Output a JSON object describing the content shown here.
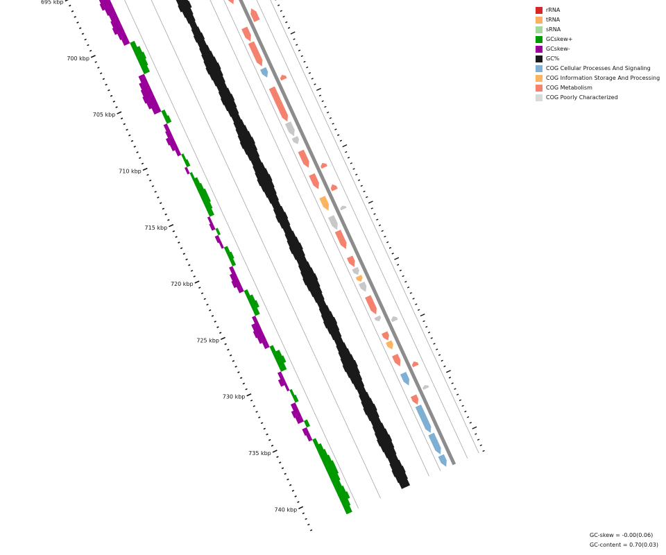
{
  "legend": [
    {
      "label": "rRNA",
      "color": "#d62728"
    },
    {
      "label": "tRNA",
      "color": "#fdae61"
    },
    {
      "label": "sRNA",
      "color": "#a1d99b"
    },
    {
      "label": "GCskew+",
      "color": "#009900"
    },
    {
      "label": "GCskew-",
      "color": "#990099"
    },
    {
      "label": "GC%",
      "color": "#1a1a1a"
    },
    {
      "label": "COG Cellular Processes And Signaling",
      "color": "#7fb0d4"
    },
    {
      "label": "COG Information Storage And Processing",
      "color": "#fdb462"
    },
    {
      "label": "COG Metabolism",
      "color": "#f4826f"
    },
    {
      "label": "COG Poorly Characterized",
      "color": "#d9d9d9"
    }
  ],
  "stats": {
    "gc_skew": "GC-skew = -0.00(0.06)",
    "gc_content": "GC-content = 0.70(0.03)"
  },
  "chart_data": {
    "type": "circular-genome-map-segment",
    "unit": "kbp",
    "range_kbp": [
      692,
      742
    ],
    "tick_labels": [
      {
        "kbp": 695,
        "label": "695 kbp"
      },
      {
        "kbp": 700,
        "label": "700 kbp"
      },
      {
        "kbp": 705,
        "label": "705 kbp"
      },
      {
        "kbp": 710,
        "label": "710 kbp"
      },
      {
        "kbp": 715,
        "label": "715 kbp"
      },
      {
        "kbp": 720,
        "label": "720 kbp"
      },
      {
        "kbp": 725,
        "label": "725 kbp"
      },
      {
        "kbp": 730,
        "label": "730 kbp"
      },
      {
        "kbp": 735,
        "label": "735 kbp"
      },
      {
        "kbp": 740,
        "label": "740 kbp"
      }
    ],
    "gc_skew": [
      0.7,
      0.6,
      0.55,
      0.5,
      0.4,
      -0.3,
      -0.6,
      -0.8,
      -0.9,
      -0.7,
      -0.6,
      -0.7,
      -0.8,
      -0.6,
      -0.5,
      0.4,
      0.6,
      0.7,
      0.6,
      0.5,
      -0.5,
      -0.7,
      -0.8,
      -0.9,
      -0.8,
      -0.6,
      0.3,
      0.4,
      -0.3,
      -0.4,
      -0.6,
      -0.5,
      -0.3,
      0.2,
      0.3,
      -0.2,
      0.2,
      0.4,
      0.5,
      0.6,
      0.6,
      0.5,
      0.4,
      -0.2,
      -0.3,
      0.2,
      -0.3,
      -0.2,
      0.3,
      0.4,
      0.3,
      -0.3,
      -0.5,
      -0.6,
      -0.4,
      0.3,
      0.5,
      0.6,
      0.4,
      -0.3,
      -0.6,
      -0.7,
      -0.6,
      -0.4,
      0.3,
      0.6,
      0.7,
      0.5,
      -0.3,
      -0.5,
      -0.2,
      0.2,
      0.3,
      -0.4,
      -0.6,
      -0.5,
      0.3,
      -0.4,
      -0.3,
      0.3,
      0.5,
      0.6,
      0.7,
      0.8,
      0.8,
      0.7,
      0.6,
      0.7,
      0.8,
      0.6,
      0.5
    ],
    "gc_percent": [
      0.2,
      0.3,
      0.5,
      0.6,
      0.5,
      0.4,
      0.5,
      0.6,
      0.7,
      0.6,
      0.5,
      0.6,
      0.7,
      0.8,
      0.6,
      0.5,
      0.4,
      0.5,
      0.6,
      0.5,
      0.6,
      0.7,
      0.8,
      0.9,
      0.8,
      0.7,
      0.6,
      0.7,
      0.8,
      0.7,
      0.6,
      0.5,
      0.6,
      0.7,
      0.8,
      0.9,
      0.8,
      0.7,
      0.6,
      0.7,
      0.8,
      0.9,
      0.8,
      0.7,
      0.6,
      0.5,
      0.6,
      0.7,
      0.6,
      0.5,
      0.6,
      0.7,
      0.8,
      0.7,
      0.6,
      0.7,
      0.8,
      0.9,
      0.8,
      0.7,
      0.6,
      0.5,
      0.6,
      0.7,
      0.8,
      0.7,
      0.6,
      0.5,
      0.6,
      0.7,
      0.8,
      0.9,
      0.8,
      0.7,
      0.6,
      0.5,
      0.6,
      0.7,
      0.8,
      0.7,
      0.6,
      0.7,
      0.8,
      0.9,
      0.8,
      0.7,
      0.6,
      0.7,
      0.8,
      0.7,
      0.6
    ],
    "features": [
      {
        "start": 692.2,
        "end": 693.5,
        "strand": "+",
        "category": "COG Metabolism"
      },
      {
        "start": 694.3,
        "end": 694.8,
        "strand": "-",
        "category": "COG Cellular Processes And Signaling"
      },
      {
        "start": 695.0,
        "end": 697.2,
        "strand": "+",
        "category": "COG Metabolism"
      },
      {
        "start": 697.8,
        "end": 699.6,
        "strand": "+",
        "category": "COG Metabolism"
      },
      {
        "start": 699.7,
        "end": 700.9,
        "strand": "+",
        "category": "COG Metabolism"
      },
      {
        "start": 701.8,
        "end": 702.6,
        "strand": "-",
        "category": "COG Metabolism"
      },
      {
        "start": 702.4,
        "end": 702.9,
        "strand": "-",
        "category": "COG Metabolism"
      },
      {
        "start": 703.0,
        "end": 704.2,
        "strand": "+",
        "category": "COG Metabolism"
      },
      {
        "start": 704.3,
        "end": 706.4,
        "strand": "+",
        "category": "COG Metabolism"
      },
      {
        "start": 706.6,
        "end": 707.4,
        "strand": "+",
        "category": "COG Cellular Processes And Signaling"
      },
      {
        "start": 707.7,
        "end": 708.1,
        "strand": "-",
        "category": "COG Metabolism"
      },
      {
        "start": 708.3,
        "end": 711.3,
        "strand": "+",
        "category": "COG Metabolism"
      },
      {
        "start": 711.4,
        "end": 712.6,
        "strand": "+",
        "category": "COG Poorly Characterized"
      },
      {
        "start": 712.7,
        "end": 713.3,
        "strand": "+",
        "category": "COG Poorly Characterized"
      },
      {
        "start": 713.9,
        "end": 715.4,
        "strand": "+",
        "category": "COG Metabolism"
      },
      {
        "start": 715.5,
        "end": 715.9,
        "strand": "-",
        "category": "COG Metabolism"
      },
      {
        "start": 716.0,
        "end": 717.3,
        "strand": "+",
        "category": "COG Metabolism"
      },
      {
        "start": 717.4,
        "end": 717.9,
        "strand": "-",
        "category": "COG Metabolism"
      },
      {
        "start": 718.0,
        "end": 719.2,
        "strand": "+",
        "category": "COG Information Storage And Processing"
      },
      {
        "start": 719.3,
        "end": 719.6,
        "strand": "-",
        "category": "COG Poorly Characterized"
      },
      {
        "start": 719.7,
        "end": 720.9,
        "strand": "+",
        "category": "COG Poorly Characterized"
      },
      {
        "start": 721.0,
        "end": 722.6,
        "strand": "+",
        "category": "COG Metabolism"
      },
      {
        "start": 723.3,
        "end": 724.2,
        "strand": "+",
        "category": "COG Metabolism"
      },
      {
        "start": 724.3,
        "end": 724.9,
        "strand": "+",
        "category": "COG Poorly Characterized"
      },
      {
        "start": 725.0,
        "end": 725.5,
        "strand": "+",
        "category": "COG Information Storage And Processing"
      },
      {
        "start": 725.6,
        "end": 726.4,
        "strand": "+",
        "category": "COG Poorly Characterized"
      },
      {
        "start": 726.8,
        "end": 728.4,
        "strand": "+",
        "category": "COG Metabolism"
      },
      {
        "start": 728.6,
        "end": 729.0,
        "strand": "+",
        "category": "COG Poorly Characterized"
      },
      {
        "start": 729.1,
        "end": 729.5,
        "strand": "-",
        "category": "COG Poorly Characterized"
      },
      {
        "start": 730.0,
        "end": 730.7,
        "strand": "+",
        "category": "COG Metabolism"
      },
      {
        "start": 730.8,
        "end": 731.5,
        "strand": "+",
        "category": "COG Information Storage And Processing"
      },
      {
        "start": 732.0,
        "end": 733.0,
        "strand": "+",
        "category": "COG Metabolism"
      },
      {
        "start": 733.1,
        "end": 733.5,
        "strand": "-",
        "category": "COG Metabolism"
      },
      {
        "start": 733.6,
        "end": 734.7,
        "strand": "+",
        "category": "COG Cellular Processes And Signaling"
      },
      {
        "start": 735.2,
        "end": 735.5,
        "strand": "-",
        "category": "COG Poorly Characterized"
      },
      {
        "start": 735.6,
        "end": 736.4,
        "strand": "+",
        "category": "COG Metabolism"
      },
      {
        "start": 736.5,
        "end": 738.9,
        "strand": "+",
        "category": "COG Cellular Processes And Signaling"
      },
      {
        "start": 739.0,
        "end": 740.8,
        "strand": "+",
        "category": "COG Cellular Processes And Signaling"
      },
      {
        "start": 740.9,
        "end": 741.9,
        "strand": "+",
        "category": "COG Cellular Processes And Signaling"
      }
    ]
  }
}
